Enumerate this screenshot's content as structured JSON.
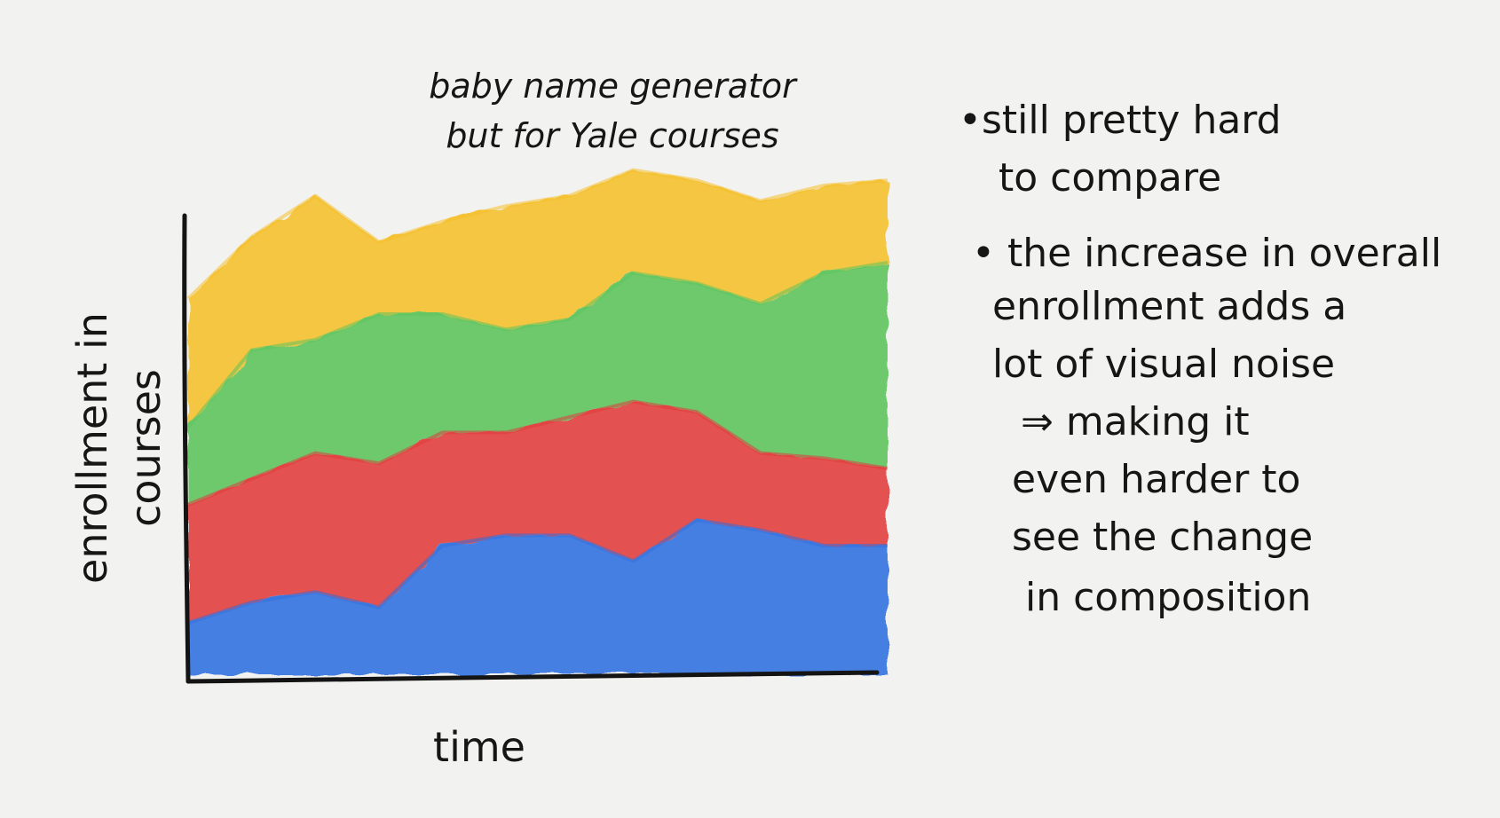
{
  "chart_data": {
    "type": "area",
    "stacked": true,
    "title": [
      "baby name generator",
      "but for Yale courses"
    ],
    "xlabel": "time",
    "ylabel": [
      "enrollment in",
      "courses"
    ],
    "x": [
      0,
      1,
      2,
      3,
      4,
      5,
      6,
      7,
      8,
      9,
      10,
      11
    ],
    "ylim": [
      0,
      100
    ],
    "series": [
      {
        "color": "#2f6fe0",
        "values": [
          10,
          14,
          16,
          13,
          25,
          27,
          27,
          22,
          30,
          28,
          25,
          25
        ]
      },
      {
        "color": "#e23a3a",
        "values": [
          23,
          24,
          27,
          28,
          22,
          20,
          23,
          31,
          21,
          15,
          17,
          15
        ]
      },
      {
        "color": "#5cc45c",
        "values": [
          15,
          25,
          22,
          29,
          23,
          20,
          19,
          25,
          25,
          29,
          36,
          40
        ]
      },
      {
        "color": "#f5c02a",
        "values": [
          25,
          22,
          28,
          14,
          18,
          24,
          24,
          20,
          20,
          20,
          17,
          16
        ]
      }
    ],
    "grid": false,
    "legend": "none"
  },
  "notes": [
    {
      "lines": [
        "•still pretty hard",
        "to compare"
      ]
    },
    {
      "lines": [
        "• the increase in overall",
        "enrollment adds a",
        "lot of visual noise"
      ]
    },
    {
      "lines": [
        "⇒ making it",
        "even harder to",
        "see the change",
        "in composition"
      ]
    }
  ]
}
